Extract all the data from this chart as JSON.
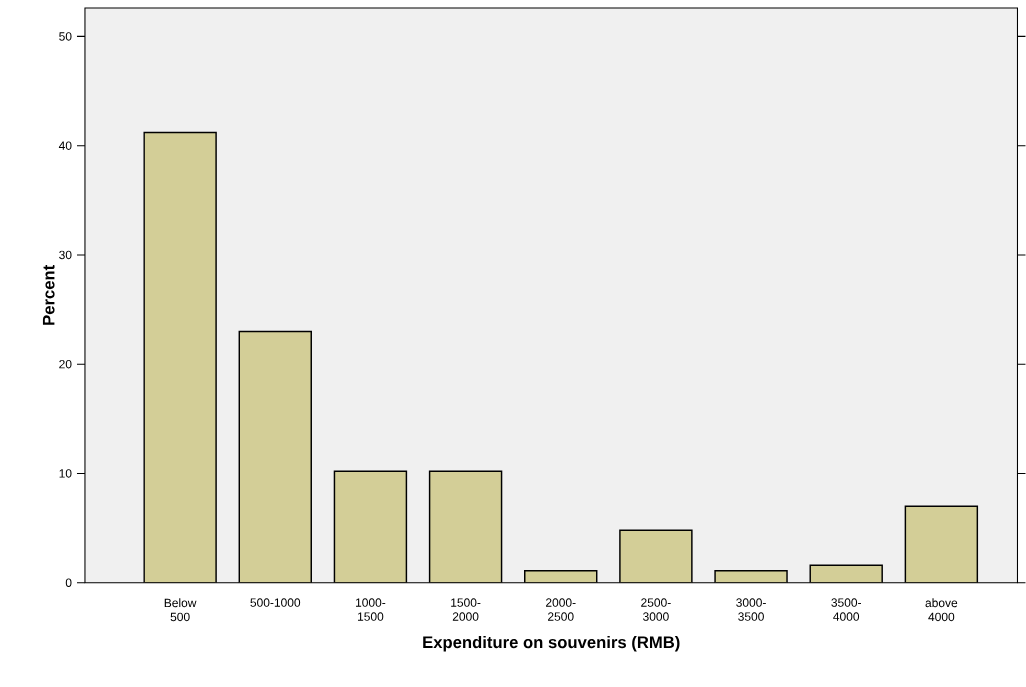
{
  "chart_data": {
    "type": "bar",
    "xlabel": "Expenditure on souvenirs (RMB)",
    "ylabel": "Percent",
    "categories": [
      "Below 500",
      "500-1000",
      "1000-1500",
      "1500-2000",
      "2000-2500",
      "2500-3000",
      "3000-3500",
      "3500-4000",
      "above 4000"
    ],
    "values": [
      41.2,
      23.0,
      10.2,
      10.2,
      1.1,
      4.8,
      1.1,
      1.6,
      7.0
    ],
    "color": "#d3ce97",
    "ylim": [
      0,
      52.6
    ],
    "yticks": [
      0,
      10,
      20,
      30,
      40,
      50
    ],
    "grid": false
  }
}
